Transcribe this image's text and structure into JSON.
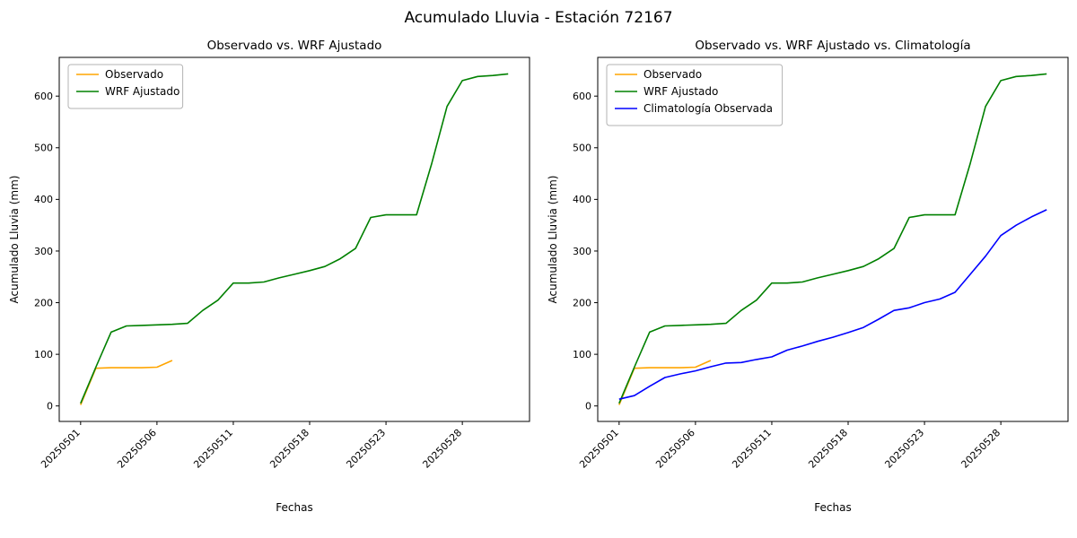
{
  "figure_title": "Acumulado Lluvia - Estación 72167",
  "colors": {
    "observado": "#FFA500",
    "wrf_ajustado": "#008000",
    "climatologia": "#0000FF"
  },
  "chart_data": [
    {
      "type": "line",
      "title": "Observado vs. WRF Ajustado",
      "xlabel": "Fechas",
      "ylabel": "Acumulado Lluvia (mm)",
      "ylim": [
        -30,
        675
      ],
      "yticks": [
        0,
        100,
        200,
        300,
        400,
        500,
        600
      ],
      "grid": false,
      "legend_position": "upper left",
      "x": [
        "20250501",
        "20250502",
        "20250503",
        "20250504",
        "20250505",
        "20250506",
        "20250507",
        "20250508",
        "20250509",
        "20250510",
        "20250511",
        "20250514",
        "20250515",
        "20250516",
        "20250517",
        "20250518",
        "20250519",
        "20250520",
        "20250521",
        "20250522",
        "20250523",
        "20250524",
        "20250525",
        "20250526",
        "20250527",
        "20250528",
        "20250529",
        "20250530",
        "20250531"
      ],
      "xtick_indices": [
        0,
        5,
        10,
        15,
        20,
        25
      ],
      "xtick_labels": [
        "20250501",
        "20250506",
        "20250511",
        "20250518",
        "20250523",
        "20250528"
      ],
      "series": [
        {
          "name": "Observado",
          "color": "#FFA500",
          "values": [
            2,
            73,
            74,
            74,
            74,
            75,
            88,
            null,
            null,
            null,
            null,
            null,
            null,
            null,
            null,
            null,
            null,
            null,
            null,
            null,
            null,
            null,
            null,
            null,
            null,
            null,
            null,
            null,
            null
          ]
        },
        {
          "name": "WRF Ajustado",
          "color": "#008000",
          "values": [
            5,
            75,
            143,
            155,
            156,
            157,
            158,
            160,
            185,
            205,
            238,
            238,
            240,
            248,
            255,
            262,
            270,
            285,
            305,
            365,
            370,
            370,
            370,
            470,
            580,
            630,
            638,
            640,
            643
          ]
        }
      ]
    },
    {
      "type": "line",
      "title": "Observado vs. WRF Ajustado vs. Climatología",
      "xlabel": "Fechas",
      "ylabel": "Acumulado Lluvia (mm)",
      "ylim": [
        -30,
        675
      ],
      "yticks": [
        0,
        100,
        200,
        300,
        400,
        500,
        600
      ],
      "grid": false,
      "legend_position": "upper left",
      "x": [
        "20250501",
        "20250502",
        "20250503",
        "20250504",
        "20250505",
        "20250506",
        "20250507",
        "20250508",
        "20250509",
        "20250510",
        "20250511",
        "20250514",
        "20250515",
        "20250516",
        "20250517",
        "20250518",
        "20250519",
        "20250520",
        "20250521",
        "20250522",
        "20250523",
        "20250524",
        "20250525",
        "20250526",
        "20250527",
        "20250528",
        "20250529",
        "20250530",
        "20250531"
      ],
      "xtick_indices": [
        0,
        5,
        10,
        15,
        20,
        25
      ],
      "xtick_labels": [
        "20250501",
        "20250506",
        "20250511",
        "20250518",
        "20250523",
        "20250528"
      ],
      "series": [
        {
          "name": "Observado",
          "color": "#FFA500",
          "values": [
            2,
            73,
            74,
            74,
            74,
            75,
            88,
            null,
            null,
            null,
            null,
            null,
            null,
            null,
            null,
            null,
            null,
            null,
            null,
            null,
            null,
            null,
            null,
            null,
            null,
            null,
            null,
            null,
            null
          ]
        },
        {
          "name": "WRF Ajustado",
          "color": "#008000",
          "values": [
            5,
            75,
            143,
            155,
            156,
            157,
            158,
            160,
            185,
            205,
            238,
            238,
            240,
            248,
            255,
            262,
            270,
            285,
            305,
            365,
            370,
            370,
            370,
            470,
            580,
            630,
            638,
            640,
            643
          ]
        },
        {
          "name": "Climatología Observada",
          "color": "#0000FF",
          "values": [
            13,
            20,
            38,
            55,
            62,
            68,
            76,
            83,
            84,
            90,
            95,
            108,
            116,
            125,
            133,
            142,
            152,
            168,
            185,
            190,
            200,
            207,
            220,
            255,
            290,
            330,
            350,
            366,
            380
          ]
        }
      ]
    }
  ]
}
